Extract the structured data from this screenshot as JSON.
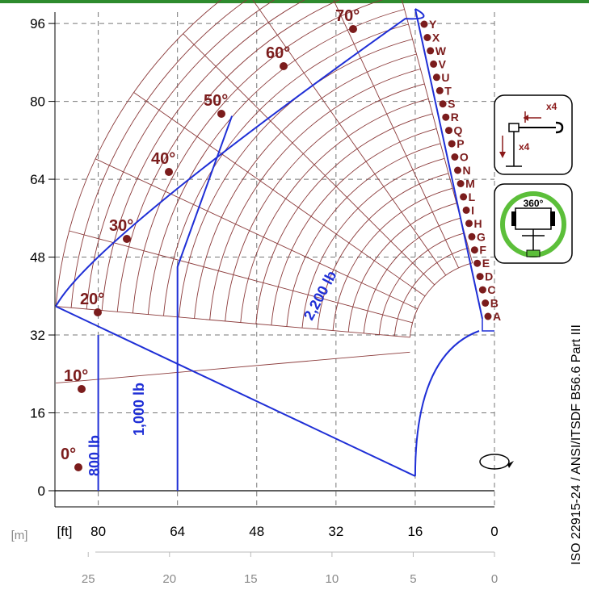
{
  "chart_data": {
    "type": "load-chart",
    "x_unit_label": "[ft]",
    "y_unit_label": "",
    "secondary_unit_label": "[m]",
    "x_ticks_ft": [
      80,
      64,
      48,
      32,
      16,
      0
    ],
    "y_ticks_ft": [
      96,
      80,
      64,
      48,
      32,
      16,
      0
    ],
    "x_ticks_m": [
      25,
      20,
      15,
      10,
      5,
      0
    ],
    "xlim_ft": [
      88,
      0
    ],
    "ylim_ft": [
      -4,
      99
    ],
    "grid": true,
    "boom_angles_deg": [
      0,
      10,
      20,
      30,
      40,
      50,
      60,
      70
    ],
    "angle_labels": [
      "0°",
      "10°",
      "20°",
      "30°",
      "40°",
      "50°",
      "60°",
      "70°"
    ],
    "extension_letters": [
      "A",
      "B",
      "C",
      "D",
      "E",
      "F",
      "G",
      "H",
      "I",
      "L",
      "M",
      "N",
      "O",
      "P",
      "Q",
      "R",
      "S",
      "T",
      "U",
      "V",
      "W",
      "X",
      "Y"
    ],
    "load_zones": [
      {
        "label": "800 lb",
        "value": 800
      },
      {
        "label": "1,000 lb",
        "value": 1000
      },
      {
        "label": "2,200 lb",
        "value": 2200
      }
    ],
    "zone_boundaries_ft": {
      "inner_arc_radius": 30,
      "outer_arc_radius": 99,
      "b1000_vertical_x": 64,
      "b1000_vertical_ytop": 46,
      "b2200_top_point": [
        53,
        77
      ]
    }
  },
  "standard_text": "ISO 22915-24  / ANSI/ITSDF B56.6 Part III",
  "icons": {
    "outrigger_label_x": "x4",
    "outrigger_label_y": "x4",
    "rotation_label": "360°"
  },
  "colors": {
    "grid_lines": "#8b3a3a",
    "envelope": "#1f2fd6",
    "points": "#7b1c1c",
    "header_bar": "#2e8b2e",
    "ring": "#5cbf3a"
  }
}
